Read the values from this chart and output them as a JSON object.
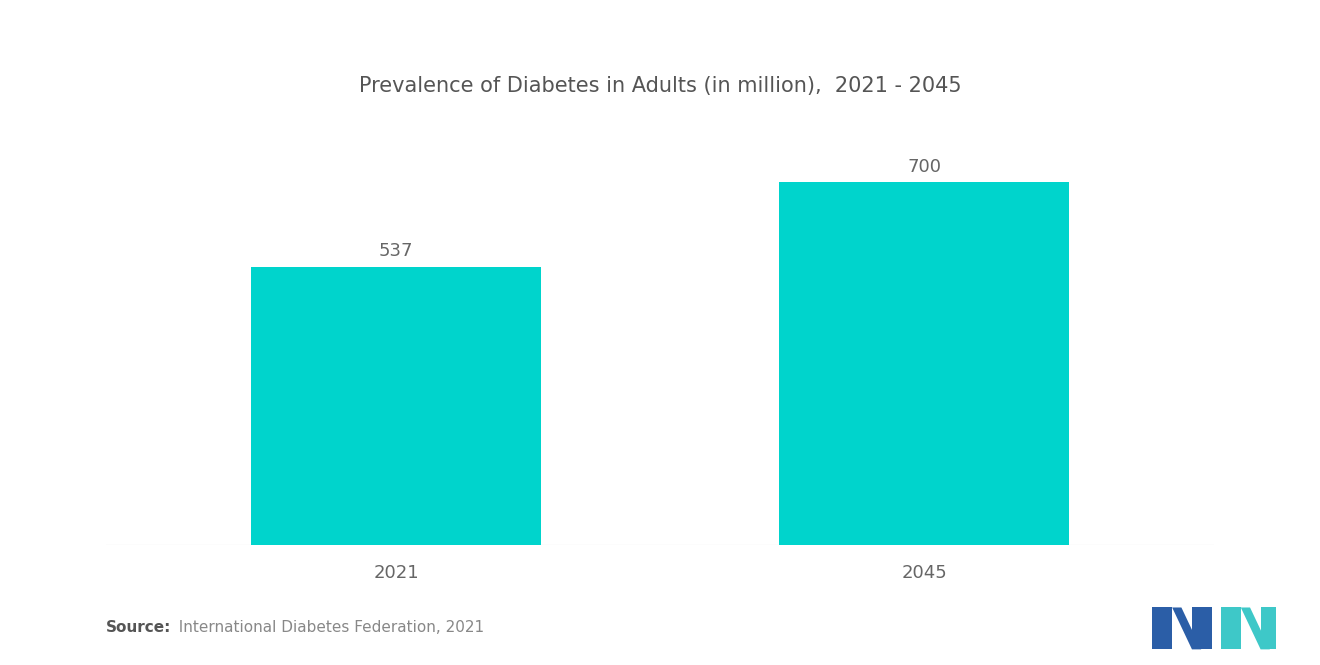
{
  "title": "Prevalence of Diabetes in Adults (in million),  2021 - 2045",
  "categories": [
    "2021",
    "2045"
  ],
  "values": [
    537,
    700
  ],
  "bar_color": "#00D4CC",
  "background_color": "#ffffff",
  "source_bold": "Source:",
  "source_rest": "  International Diabetes Federation, 2021",
  "title_fontsize": 15,
  "label_fontsize": 13,
  "value_fontsize": 13,
  "ylim": [
    0,
    820
  ],
  "bar_width": 0.55
}
